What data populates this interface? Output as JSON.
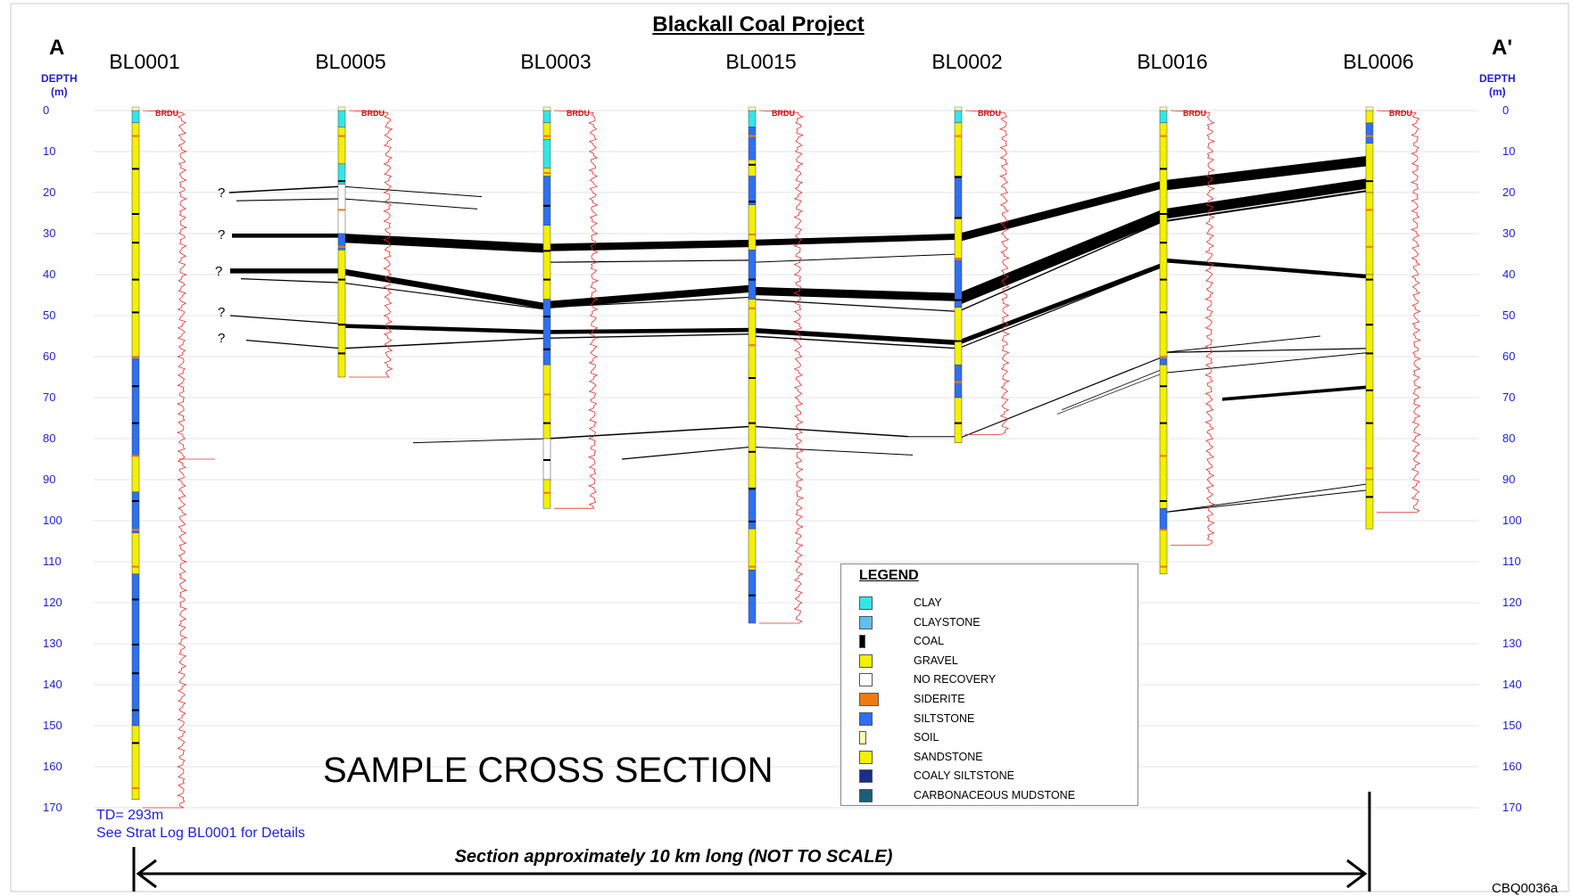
{
  "title": "Blackall Coal Project",
  "section_start": "A",
  "section_end": "A'",
  "depth_label": {
    "line1": "DEPTH",
    "line2": "(m)"
  },
  "depth_ticks": [
    "0",
    "10",
    "20",
    "30",
    "40",
    "50",
    "60",
    "70",
    "80",
    "90",
    "100",
    "110",
    "120",
    "130",
    "140",
    "150",
    "160",
    "170"
  ],
  "holes": [
    "BL0001",
    "BL0005",
    "BL0003",
    "BL0015",
    "BL0002",
    "BL0016",
    "BL0006"
  ],
  "marker": "BRDU",
  "query_marks": [
    "?",
    "?",
    "?",
    "?",
    "?"
  ],
  "total_depth": "TD= 293m",
  "strat_note": "See Strat Log BL0001 for Details",
  "watermark": "SAMPLE CROSS SECTION",
  "section_length": "Section approximately 10 km long (NOT TO SCALE)",
  "figure_code": "CBQ0036a",
  "legend": {
    "title": "LEGEND",
    "items": [
      {
        "label": "CLAY",
        "color": "#33e6e6"
      },
      {
        "label": "CLAYSTONE",
        "color": "#5fbff0"
      },
      {
        "label": "COAL",
        "color": "#000000"
      },
      {
        "label": "GRAVEL",
        "color": "#f3f000"
      },
      {
        "label": "NO RECOVERY",
        "color": "#ffffff"
      },
      {
        "label": "SIDERITE",
        "color": "#f07a10"
      },
      {
        "label": "SILTSTONE",
        "color": "#2f6ff0"
      },
      {
        "label": "SOIL",
        "color": "#ffffb0"
      },
      {
        "label": "SANDSTONE",
        "color": "#f3f000"
      },
      {
        "label": "COALY SILTSTONE",
        "color": "#1a2f8a"
      },
      {
        "label": "CARBONACEOUS MUDSTONE",
        "color": "#1a5f7a"
      }
    ]
  },
  "colors": {
    "siltstone": "#2f6ff0",
    "sandstone": "#f3f000",
    "clay": "#33e6e6",
    "siderite": "#f07a10",
    "log": "#e03030",
    "depth_text": "#1f1fd0"
  }
}
